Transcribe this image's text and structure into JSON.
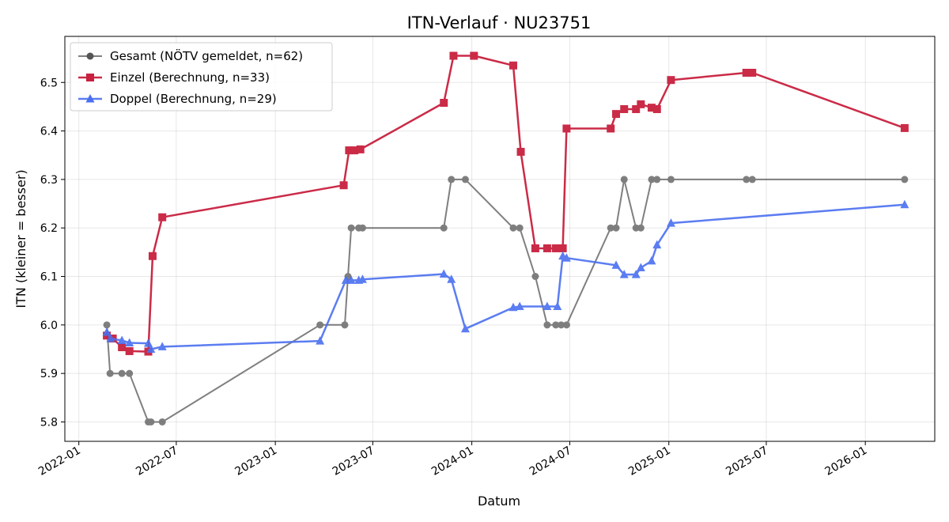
{
  "chart_data": {
    "type": "line",
    "title": "ITN-Verlauf · NU23751",
    "xlabel": "Datum",
    "ylabel": "ITN  (kleiner = besser)",
    "x_axis": "date",
    "xlim": [
      "2021-12-06",
      "2026-05-10"
    ],
    "ylim": [
      5.76,
      6.595
    ],
    "grid": true,
    "legend_position": "top-left",
    "x_ticks": [
      "2022-01-01",
      "2022-07-01",
      "2023-01-01",
      "2023-07-01",
      "2024-01-01",
      "2024-07-01",
      "2025-01-01",
      "2025-07-01",
      "2026-01-01"
    ],
    "x_tick_labels": [
      "2022-01",
      "2022-07",
      "2023-01",
      "2023-07",
      "2024-01",
      "2024-07",
      "2025-01",
      "2025-07",
      "2026-01"
    ],
    "y_ticks": [
      5.8,
      5.9,
      6.0,
      6.1,
      6.2,
      6.3,
      6.4,
      6.5
    ],
    "y_tick_labels": [
      "5.8",
      "5.9",
      "6.0",
      "6.1",
      "6.2",
      "6.3",
      "6.4",
      "6.5"
    ],
    "series": [
      {
        "name": "Gesamt (NÖTV gemeldet, n=62)",
        "color": "#555555",
        "marker": "circle",
        "points": [
          [
            "2022-02-22",
            6.0
          ],
          [
            "2022-02-28",
            5.9
          ],
          [
            "2022-03-22",
            5.9
          ],
          [
            "2022-04-05",
            5.9
          ],
          [
            "2022-05-10",
            5.8
          ],
          [
            "2022-05-15",
            5.8
          ],
          [
            "2022-06-05",
            5.8
          ],
          [
            "2023-03-25",
            6.0
          ],
          [
            "2023-05-10",
            6.0
          ],
          [
            "2023-05-16",
            6.1
          ],
          [
            "2023-05-22",
            6.2
          ],
          [
            "2023-06-05",
            6.2
          ],
          [
            "2023-06-12",
            6.2
          ],
          [
            "2023-11-10",
            6.2
          ],
          [
            "2023-11-24",
            6.3
          ],
          [
            "2023-12-20",
            6.3
          ],
          [
            "2024-03-18",
            6.2
          ],
          [
            "2024-03-30",
            6.2
          ],
          [
            "2024-04-28",
            6.1
          ],
          [
            "2024-05-20",
            6.0
          ],
          [
            "2024-06-05",
            6.0
          ],
          [
            "2024-06-15",
            6.0
          ],
          [
            "2024-06-25",
            6.0
          ],
          [
            "2024-09-15",
            6.2
          ],
          [
            "2024-09-25",
            6.2
          ],
          [
            "2024-10-10",
            6.3
          ],
          [
            "2024-11-01",
            6.2
          ],
          [
            "2024-11-10",
            6.2
          ],
          [
            "2024-11-30",
            6.3
          ],
          [
            "2024-12-10",
            6.3
          ],
          [
            "2025-01-05",
            6.3
          ],
          [
            "2025-05-25",
            6.3
          ],
          [
            "2025-06-05",
            6.3
          ],
          [
            "2026-03-15",
            6.3
          ]
        ]
      },
      {
        "name": "Einzel (Berechnung, n=33)",
        "color": "#c8203e",
        "marker": "square",
        "points": [
          [
            "2022-02-22",
            5.978
          ],
          [
            "2022-03-05",
            5.972
          ],
          [
            "2022-03-22",
            5.954
          ],
          [
            "2022-04-05",
            5.946
          ],
          [
            "2022-05-10",
            5.945
          ],
          [
            "2022-05-18",
            6.142
          ],
          [
            "2022-06-05",
            6.222
          ],
          [
            "2023-05-08",
            6.288
          ],
          [
            "2023-05-18",
            6.36
          ],
          [
            "2023-05-28",
            6.36
          ],
          [
            "2023-06-08",
            6.362
          ],
          [
            "2023-11-10",
            6.458
          ],
          [
            "2023-11-28",
            6.555
          ],
          [
            "2024-01-05",
            6.555
          ],
          [
            "2024-03-18",
            6.535
          ],
          [
            "2024-04-01",
            6.357
          ],
          [
            "2024-04-28",
            6.158
          ],
          [
            "2024-05-20",
            6.158
          ],
          [
            "2024-06-05",
            6.158
          ],
          [
            "2024-06-18",
            6.158
          ],
          [
            "2024-06-25",
            6.405
          ],
          [
            "2024-09-15",
            6.405
          ],
          [
            "2024-09-25",
            6.435
          ],
          [
            "2024-10-10",
            6.445
          ],
          [
            "2024-11-01",
            6.445
          ],
          [
            "2024-11-10",
            6.455
          ],
          [
            "2024-11-30",
            6.448
          ],
          [
            "2024-12-10",
            6.445
          ],
          [
            "2025-01-05",
            6.505
          ],
          [
            "2025-05-25",
            6.52
          ],
          [
            "2025-06-05",
            6.52
          ],
          [
            "2026-03-15",
            6.406
          ]
        ]
      },
      {
        "name": "Doppel (Berechnung, n=29)",
        "color": "#4a6ff0",
        "marker": "triangle",
        "points": [
          [
            "2022-02-22",
            5.985
          ],
          [
            "2022-03-01",
            5.972
          ],
          [
            "2022-03-22",
            5.968
          ],
          [
            "2022-04-05",
            5.963
          ],
          [
            "2022-05-10",
            5.962
          ],
          [
            "2022-05-15",
            5.95
          ],
          [
            "2022-06-05",
            5.955
          ],
          [
            "2023-03-25",
            5.967
          ],
          [
            "2023-05-12",
            6.092
          ],
          [
            "2023-05-22",
            6.092
          ],
          [
            "2023-06-05",
            6.092
          ],
          [
            "2023-06-12",
            6.094
          ],
          [
            "2023-11-10",
            6.105
          ],
          [
            "2023-11-24",
            6.094
          ],
          [
            "2023-12-20",
            5.992
          ],
          [
            "2024-03-18",
            6.036
          ],
          [
            "2024-03-30",
            6.038
          ],
          [
            "2024-05-20",
            6.038
          ],
          [
            "2024-06-08",
            6.038
          ],
          [
            "2024-06-18",
            6.142
          ],
          [
            "2024-06-25",
            6.138
          ],
          [
            "2024-09-25",
            6.123
          ],
          [
            "2024-10-10",
            6.104
          ],
          [
            "2024-11-01",
            6.104
          ],
          [
            "2024-11-10",
            6.118
          ],
          [
            "2024-11-30",
            6.132
          ],
          [
            "2024-12-10",
            6.165
          ],
          [
            "2025-01-05",
            6.21
          ],
          [
            "2026-03-15",
            6.248
          ]
        ]
      }
    ]
  }
}
